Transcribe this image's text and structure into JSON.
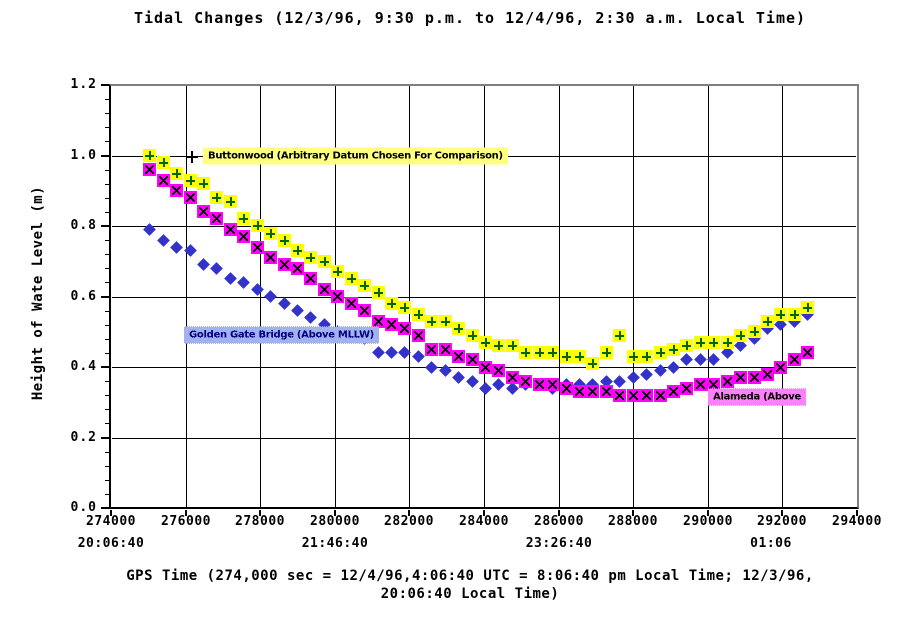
{
  "chart_data": {
    "type": "scatter",
    "title": "Tidal Changes (12/3/96, 9:30 p.m. to 12/4/96, 2:30 a.m. Local Time)",
    "xlabel_line1": "GPS Time (274,000 sec = 12/4/96,4:06:40 UTC = 8:06:40 pm Local Time; 12/3/96,",
    "xlabel_line2": "20:06:40 Local Time)",
    "ylabel": "Height of Wate Level (m)",
    "xlim": [
      274000,
      294000
    ],
    "ylim": [
      0.0,
      1.2
    ],
    "grid": true,
    "grid_color": "#000000",
    "frame_top_right_color": "#808080",
    "background_color": "#ffffff",
    "xticks": [
      274000,
      276000,
      278000,
      280000,
      282000,
      284000,
      286000,
      288000,
      290000,
      292000,
      294000
    ],
    "xtick_labels": [
      "274000",
      "276000",
      "278000",
      "280000",
      "282000",
      "284000",
      "286000",
      "288000",
      "290000",
      "292000",
      "294000"
    ],
    "x_time_labels": [
      {
        "x": 274000,
        "label": "20:06:40"
      },
      {
        "x": 280000,
        "label": "21:46:40"
      },
      {
        "x": 286000,
        "label": "23:26:40"
      },
      {
        "x": 291700,
        "label": "01:06"
      }
    ],
    "yticks": [
      0.0,
      0.2,
      0.4,
      0.6,
      0.8,
      1.0,
      1.2
    ],
    "ytick_labels": [
      "0.0",
      "0.2",
      "0.4",
      "0.6",
      "0.8",
      "1.0",
      "1.2"
    ],
    "y_minor_step": 0.04,
    "x_step": 360,
    "x": [
      275040,
      275400,
      275760,
      276120,
      276480,
      276840,
      277200,
      277560,
      277920,
      278280,
      278640,
      279000,
      279360,
      279720,
      280080,
      280440,
      280800,
      281160,
      281520,
      281880,
      282240,
      282600,
      282960,
      283320,
      283680,
      284040,
      284400,
      284760,
      285120,
      285480,
      285840,
      286200,
      286560,
      286920,
      287280,
      287640,
      288000,
      288360,
      288720,
      289080,
      289440,
      289800,
      290160,
      290520,
      290880,
      291240,
      291600,
      291960,
      292320,
      292680
    ],
    "series": [
      {
        "id": "buttonwood",
        "name": "Buttonwood (Arbitrary Datum Chosen For Comparison)",
        "marker": "plus-square",
        "fill": "#ffff00",
        "symbol_color": "#006600",
        "values": [
          1.0,
          0.98,
          0.95,
          0.93,
          0.92,
          0.88,
          0.87,
          0.82,
          0.8,
          0.78,
          0.76,
          0.73,
          0.71,
          0.7,
          0.67,
          0.65,
          0.63,
          0.61,
          0.58,
          0.57,
          0.55,
          0.53,
          0.53,
          0.51,
          0.49,
          0.47,
          0.46,
          0.46,
          0.44,
          0.44,
          0.44,
          0.43,
          0.43,
          0.41,
          0.44,
          0.49,
          0.43,
          0.43,
          0.44,
          0.45,
          0.46,
          0.47,
          0.47,
          0.47,
          0.49,
          0.5,
          0.53,
          0.55,
          0.55,
          0.57
        ]
      },
      {
        "id": "golden-gate-bridge",
        "name": "Golden Gate Bridge (Above MLLW)",
        "marker": "diamond",
        "fill": "#3333cc",
        "symbol_color": "#3333cc",
        "values": [
          0.79,
          0.76,
          0.74,
          0.73,
          0.69,
          0.68,
          0.65,
          0.64,
          0.62,
          0.6,
          0.58,
          0.56,
          0.54,
          0.52,
          0.5,
          0.49,
          0.48,
          0.44,
          0.44,
          0.44,
          0.43,
          0.4,
          0.39,
          0.37,
          0.36,
          0.34,
          0.35,
          0.34,
          0.35,
          0.35,
          0.34,
          0.35,
          0.35,
          0.35,
          0.36,
          0.36,
          0.37,
          0.38,
          0.39,
          0.4,
          0.42,
          0.42,
          0.42,
          0.44,
          0.46,
          0.48,
          0.51,
          0.52,
          0.53,
          0.55
        ]
      },
      {
        "id": "alameda",
        "name": "Alameda (Above",
        "marker": "x-square",
        "fill": "#ff00ff",
        "symbol_color": "#000000",
        "values": [
          0.96,
          0.93,
          0.9,
          0.88,
          0.84,
          0.82,
          0.79,
          0.77,
          0.74,
          0.71,
          0.69,
          0.68,
          0.65,
          0.62,
          0.6,
          0.58,
          0.56,
          0.53,
          0.52,
          0.51,
          0.49,
          0.45,
          0.45,
          0.43,
          0.42,
          0.4,
          0.39,
          0.37,
          0.36,
          0.35,
          0.35,
          0.34,
          0.33,
          0.33,
          0.33,
          0.32,
          0.32,
          0.32,
          0.32,
          0.33,
          0.34,
          0.35,
          0.35,
          0.36,
          0.37,
          0.37,
          0.38,
          0.4,
          0.42,
          0.44
        ]
      }
    ],
    "annotations": [
      {
        "id": "buttonwood-label",
        "text": "Buttonwood (Arbitrary Datum Chosen For Comparison)",
        "x": 276470,
        "y": 1.0,
        "style": "yellow",
        "text_color": "#000000"
      },
      {
        "id": "golden-gate-label",
        "text": "Golden Gate Bridge (Above MLLW)",
        "x": 275960,
        "y": 0.49,
        "style": "blue",
        "text_color": "#000080"
      },
      {
        "id": "alameda-label",
        "text": "Alameda (Above",
        "x": 290010,
        "y": 0.315,
        "style": "magenta",
        "text_color": "#000000"
      },
      {
        "id": "buttonwood-plus-marker",
        "type": "plus_marker",
        "x": 276170,
        "y": 0.995,
        "color": "#000000"
      }
    ]
  }
}
